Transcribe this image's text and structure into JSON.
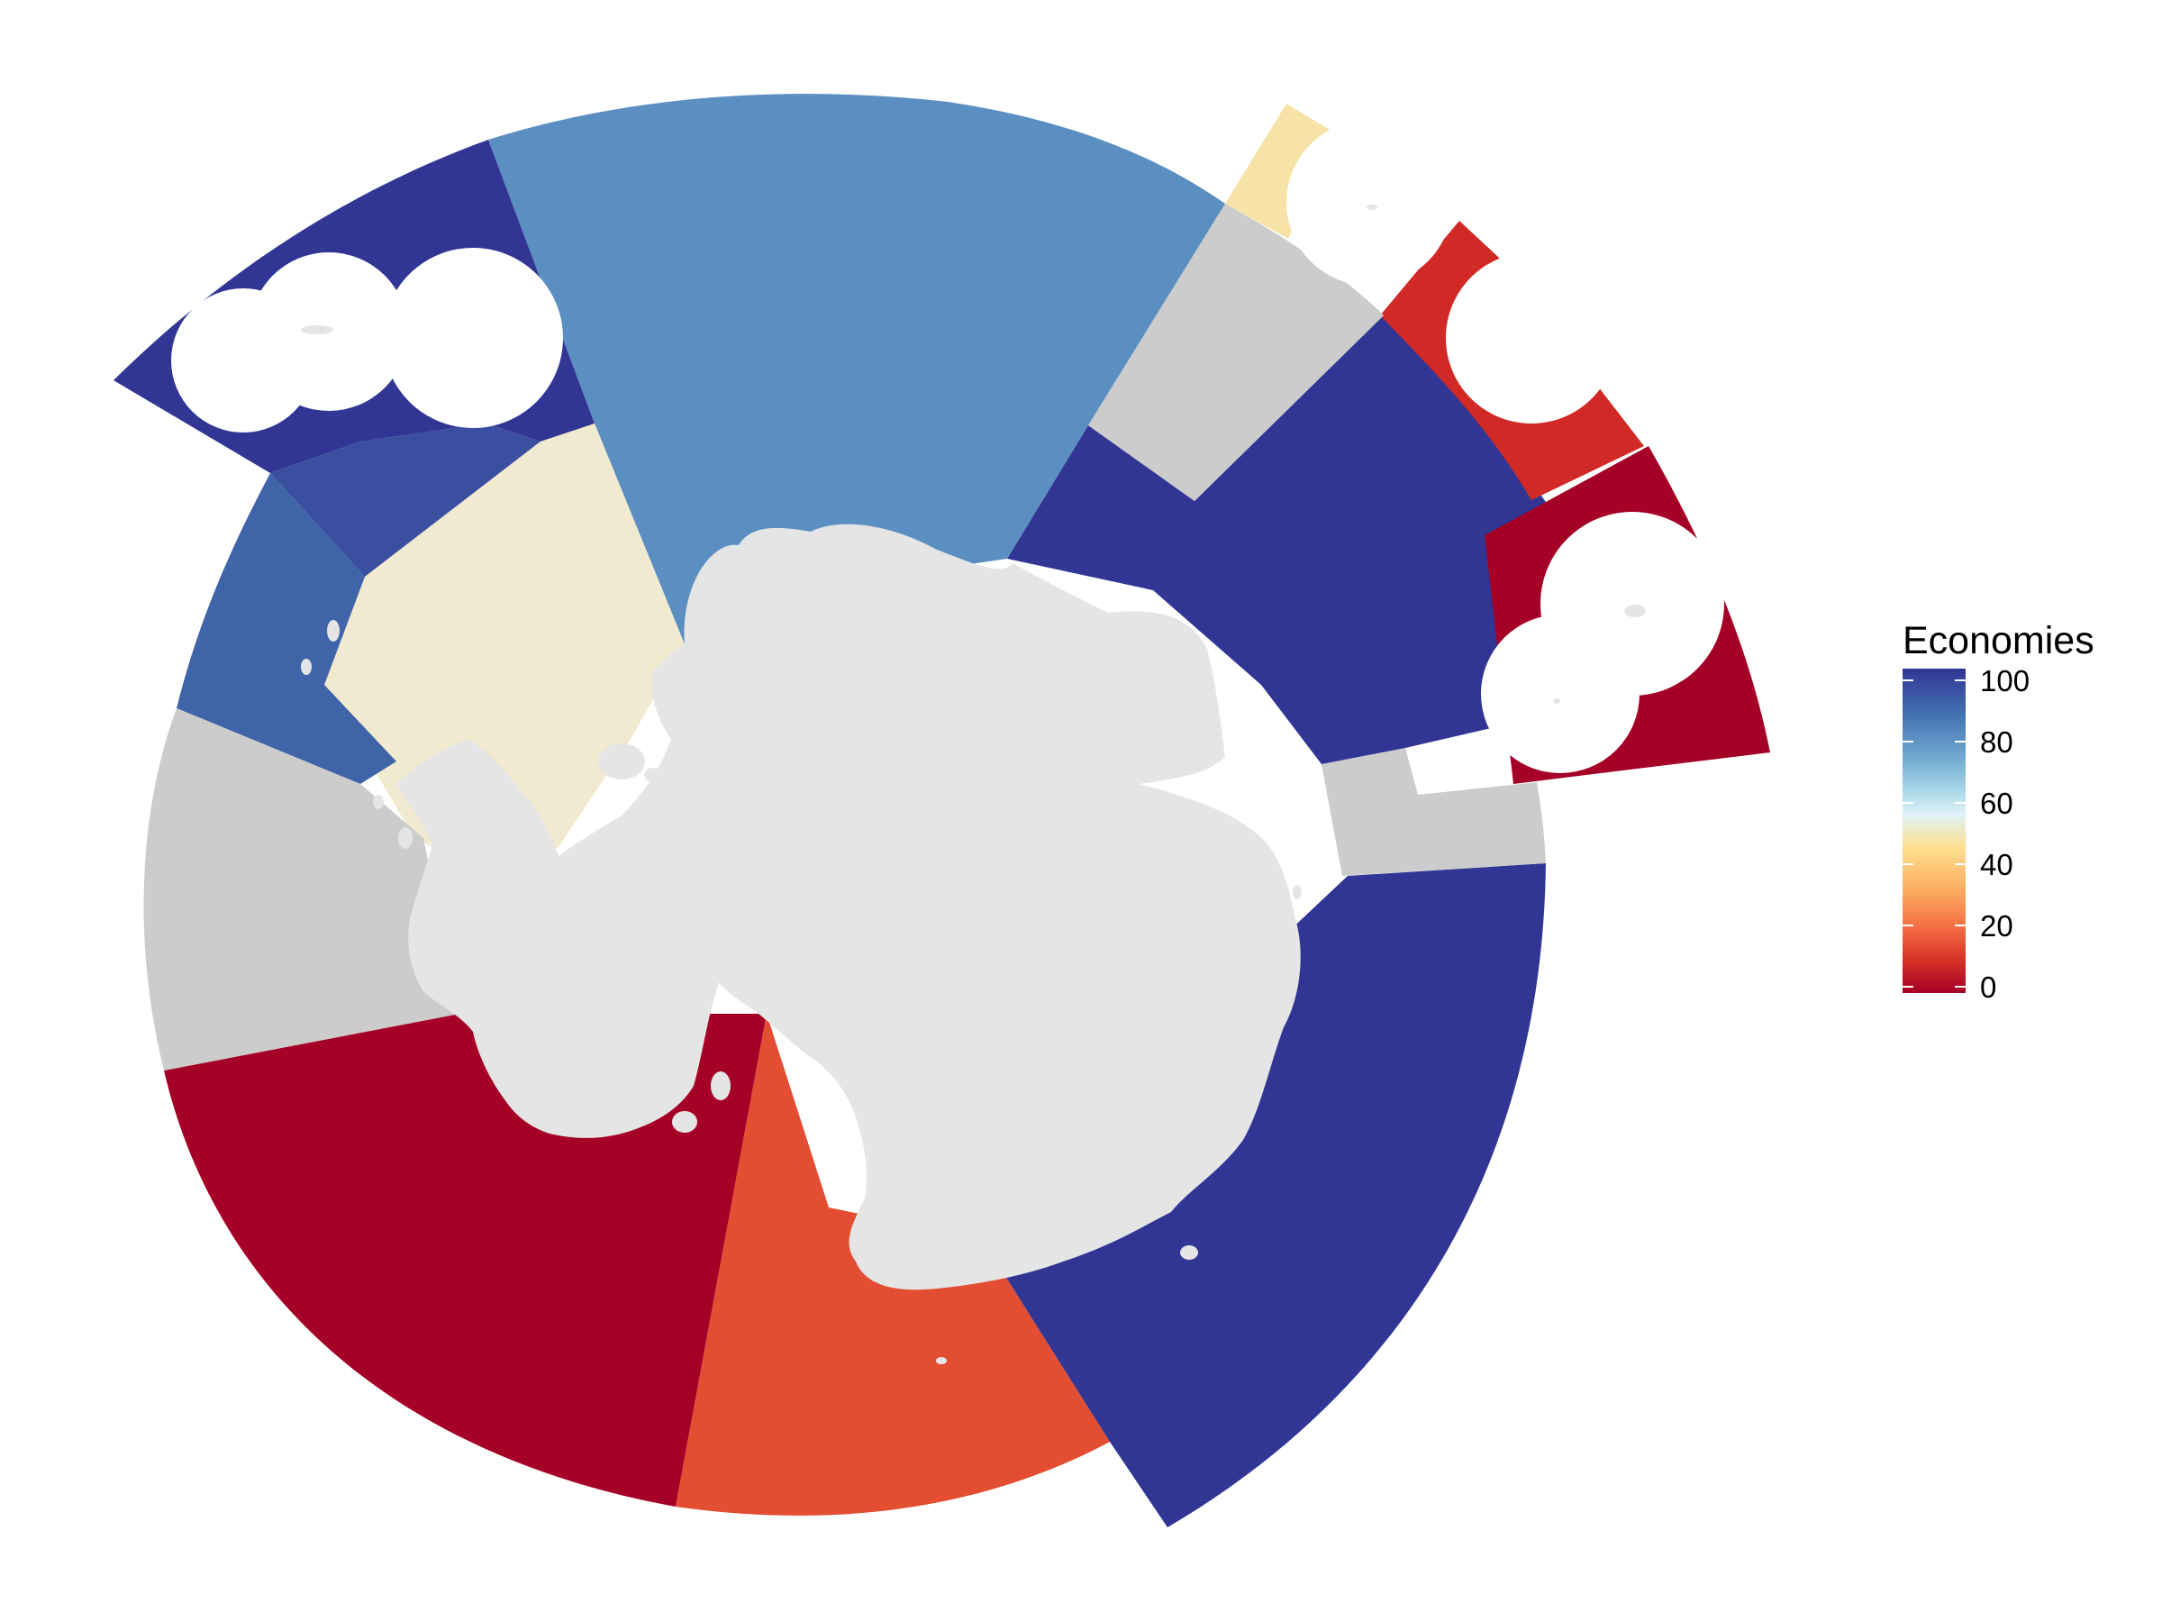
{
  "legend": {
    "title": "Economies",
    "ticks": [
      "100",
      "80",
      "60",
      "40",
      "20",
      "0"
    ],
    "gradient": [
      "#313695",
      "#4575b4",
      "#74add1",
      "#abd9e9",
      "#e0f3f8",
      "#fee090",
      "#fdae61",
      "#f46d43",
      "#d73027",
      "#a50026"
    ]
  },
  "colors": {
    "land": "#e5e5e5",
    "no_data": "#cccccc",
    "background": "#ffffff"
  },
  "regions": [
    {
      "name": "sector-south-dark-red",
      "value": 0,
      "color": "#a50026"
    },
    {
      "name": "sector-south-orange-red",
      "value": 17,
      "color": "#e34e33"
    },
    {
      "name": "sector-southeast-dark-blue",
      "value": 100,
      "color": "#313695"
    },
    {
      "name": "sector-east-grey",
      "value": null,
      "color": "#cccccc"
    },
    {
      "name": "sector-east-dark-blue",
      "value": 100,
      "color": "#313695"
    },
    {
      "name": "sector-far-east-dark-red",
      "value": 0,
      "color": "#a50026"
    },
    {
      "name": "sector-northeast-red",
      "value": 10,
      "color": "#d12a26"
    },
    {
      "name": "sector-northeast-grey",
      "value": null,
      "color": "#cccccc"
    },
    {
      "name": "sector-north-light-yellow",
      "value": 55,
      "color": "#f7e3a8"
    },
    {
      "name": "sector-north-mid-blue",
      "value": 85,
      "color": "#5c8fc1"
    },
    {
      "name": "sector-northwest-dark-blue",
      "value": 100,
      "color": "#313695"
    },
    {
      "name": "sector-northwest-inner-blue",
      "value": 95,
      "color": "#3a4f9f"
    },
    {
      "name": "sector-peninsula-cream",
      "value": 52,
      "color": "#f2ead0"
    },
    {
      "name": "sector-west-blue",
      "value": 90,
      "color": "#4064a8"
    },
    {
      "name": "sector-west-grey",
      "value": null,
      "color": "#cccccc"
    }
  ]
}
